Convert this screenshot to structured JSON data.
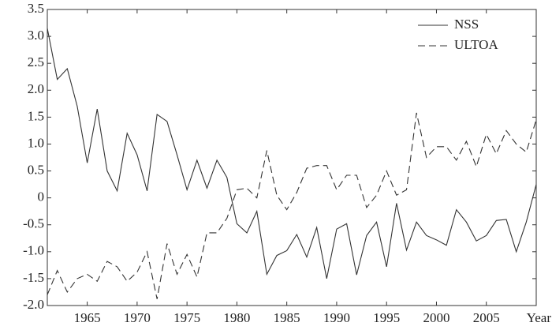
{
  "chart_data": {
    "type": "line",
    "x_label": "Year",
    "x": [
      1961,
      1962,
      1963,
      1964,
      1965,
      1966,
      1967,
      1968,
      1969,
      1970,
      1971,
      1972,
      1973,
      1974,
      1975,
      1976,
      1977,
      1978,
      1979,
      1980,
      1981,
      1982,
      1983,
      1984,
      1985,
      1986,
      1987,
      1988,
      1989,
      1990,
      1991,
      1992,
      1993,
      1994,
      1995,
      1996,
      1997,
      1998,
      1999,
      2000,
      2001,
      2002,
      2003,
      2004,
      2005,
      2006,
      2007,
      2008,
      2009,
      2010
    ],
    "series": [
      {
        "name": "NSS",
        "color": "#333333",
        "dash": "solid",
        "values": [
          3.15,
          2.2,
          2.4,
          1.7,
          0.65,
          1.65,
          0.5,
          0.13,
          1.2,
          0.8,
          0.13,
          1.55,
          1.42,
          0.8,
          0.15,
          0.7,
          0.18,
          0.7,
          0.38,
          -0.48,
          -0.65,
          -0.25,
          -1.42,
          -1.07,
          -0.98,
          -0.68,
          -1.1,
          -0.55,
          -1.5,
          -0.58,
          -0.48,
          -1.43,
          -0.7,
          -0.45,
          -1.28,
          -0.1,
          -0.97,
          -0.45,
          -0.7,
          -0.78,
          -0.88,
          -0.22,
          -0.45,
          -0.8,
          -0.7,
          -0.42,
          -0.4,
          -1.0,
          -0.45,
          0.25
        ]
      },
      {
        "name": "ULTOA",
        "color": "#333333",
        "dash": "dashed",
        "values": [
          -1.8,
          -1.35,
          -1.75,
          -1.5,
          -1.42,
          -1.55,
          -1.18,
          -1.28,
          -1.55,
          -1.38,
          -1.0,
          -1.88,
          -0.85,
          -1.42,
          -1.05,
          -1.47,
          -0.65,
          -0.65,
          -0.38,
          0.15,
          0.18,
          0.0,
          0.88,
          0.05,
          -0.22,
          0.1,
          0.55,
          0.6,
          0.6,
          0.15,
          0.42,
          0.42,
          -0.18,
          0.05,
          0.5,
          0.05,
          0.15,
          1.58,
          0.75,
          0.95,
          0.95,
          0.7,
          1.05,
          0.58,
          1.18,
          0.82,
          1.25,
          1.0,
          0.85,
          1.45
        ]
      }
    ],
    "xlim": [
      1961,
      2010
    ],
    "xticks": [
      1965,
      1970,
      1975,
      1980,
      1985,
      1990,
      1995,
      2000,
      2005
    ],
    "ylim": [
      -2,
      3.5
    ],
    "yticks": [
      {
        "value": -2,
        "label": "-2.0"
      },
      -1.5,
      {
        "value": -1,
        "label": "-1.0"
      },
      -0.5,
      0,
      0.5,
      {
        "value": 1,
        "label": "1.0"
      },
      1.5,
      {
        "value": 2,
        "label": "2.0"
      },
      2.5,
      {
        "value": 3,
        "label": "3.0"
      },
      3.5
    ],
    "legend": "top-right",
    "grid": false
  }
}
